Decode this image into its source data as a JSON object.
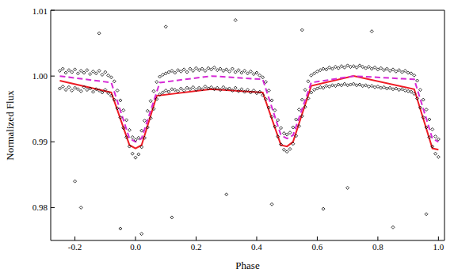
{
  "chart_data": {
    "type": "scatter",
    "x_label": "Phase",
    "y_label": "Normalized Flux",
    "xlim": [
      -0.28,
      1.02
    ],
    "xticks": [
      -0.2,
      {
        "value": 0,
        "label": "0.0"
      },
      0.2,
      0.4,
      0.6,
      0.8,
      {
        "value": 1,
        "label": "1.0"
      }
    ],
    "ylim": [
      0.975,
      1.01
    ],
    "yticks": [
      0.98,
      0.99,
      {
        "value": 1,
        "label": "1.00"
      },
      1.01
    ],
    "grid": false,
    "series": [
      {
        "type": "scatter",
        "color": "#000000",
        "marker": "diamond",
        "x": [
          -0.25,
          -0.25,
          -0.24,
          -0.24,
          -0.23,
          -0.23,
          -0.22,
          -0.22,
          -0.21,
          -0.21,
          -0.2,
          -0.2,
          -0.19,
          -0.19,
          -0.18,
          -0.18,
          -0.17,
          -0.17,
          -0.16,
          -0.16,
          -0.15,
          -0.15,
          -0.14,
          -0.14,
          -0.13,
          -0.13,
          -0.12,
          -0.12,
          -0.11,
          -0.11,
          -0.1,
          -0.1,
          -0.09,
          -0.09,
          -0.08,
          -0.08,
          -0.07,
          -0.07,
          -0.06,
          -0.06,
          -0.05,
          -0.05,
          -0.04,
          -0.04,
          -0.03,
          -0.03,
          -0.02,
          -0.02,
          -0.01,
          -0.01,
          0,
          0,
          0.01,
          0.01,
          0.02,
          0.02,
          0.03,
          0.03,
          0.04,
          0.04,
          0.05,
          0.05,
          0.06,
          0.06,
          0.07,
          0.07,
          0.08,
          0.08,
          0.09,
          0.09,
          0.1,
          0.1,
          0.11,
          0.11,
          0.12,
          0.12,
          0.13,
          0.13,
          0.14,
          0.14,
          0.15,
          0.15,
          0.16,
          0.16,
          0.17,
          0.17,
          0.18,
          0.18,
          0.19,
          0.19,
          0.2,
          0.2,
          0.21,
          0.21,
          0.22,
          0.22,
          0.23,
          0.23,
          0.24,
          0.24,
          0.25,
          0.25,
          0.26,
          0.26,
          0.27,
          0.27,
          0.28,
          0.28,
          0.29,
          0.29,
          0.3,
          0.3,
          0.31,
          0.31,
          0.32,
          0.32,
          0.33,
          0.33,
          0.34,
          0.34,
          0.35,
          0.35,
          0.36,
          0.36,
          0.37,
          0.37,
          0.38,
          0.38,
          0.39,
          0.39,
          0.4,
          0.4,
          0.41,
          0.41,
          0.42,
          0.42,
          0.43,
          0.43,
          0.44,
          0.44,
          0.45,
          0.45,
          0.46,
          0.46,
          0.47,
          0.47,
          0.48,
          0.48,
          0.49,
          0.49,
          0.5,
          0.5,
          0.51,
          0.51,
          0.52,
          0.52,
          0.53,
          0.53,
          0.54,
          0.54,
          0.55,
          0.55,
          0.56,
          0.56,
          0.57,
          0.57,
          0.58,
          0.58,
          0.59,
          0.59,
          0.6,
          0.6,
          0.61,
          0.61,
          0.62,
          0.62,
          0.63,
          0.63,
          0.64,
          0.64,
          0.65,
          0.65,
          0.66,
          0.66,
          0.67,
          0.67,
          0.68,
          0.68,
          0.69,
          0.69,
          0.7,
          0.7,
          0.71,
          0.71,
          0.72,
          0.72,
          0.73,
          0.73,
          0.74,
          0.74,
          0.75,
          0.75,
          0.76,
          0.76,
          0.77,
          0.77,
          0.78,
          0.78,
          0.79,
          0.79,
          0.8,
          0.8,
          0.81,
          0.81,
          0.82,
          0.82,
          0.83,
          0.83,
          0.84,
          0.84,
          0.85,
          0.85,
          0.86,
          0.86,
          0.87,
          0.87,
          0.88,
          0.88,
          0.89,
          0.89,
          0.9,
          0.9,
          0.91,
          0.91,
          0.92,
          0.92,
          0.93,
          0.93,
          0.94,
          0.94,
          0.95,
          0.95,
          0.96,
          0.96,
          0.97,
          0.97,
          0.98,
          0.98,
          0.99,
          0.99,
          1,
          1,
          -0.18,
          -0.05,
          0.02,
          0.12,
          0.3,
          0.45,
          0.62,
          0.85,
          0.96,
          0.1,
          0.55,
          -0.12,
          0.78,
          0.33,
          -0.2,
          0.7
        ],
        "values": [
          1.0008,
          0.9981,
          1.0011,
          0.9984,
          1.0005,
          0.9979,
          1.0009,
          0.9983,
          1.0006,
          0.9978,
          1.001,
          0.9982,
          1.0004,
          0.998,
          1.0008,
          0.9977,
          1.0005,
          0.9983,
          1.0009,
          0.9979,
          1.0003,
          0.9981,
          1.0007,
          0.9976,
          1.0004,
          0.998,
          1.0008,
          0.9978,
          1.0002,
          0.9975,
          1.0006,
          0.9979,
          1.0001,
          0.9974,
          0.9998,
          0.997,
          0.9992,
          0.9964,
          0.9978,
          0.9951,
          0.9963,
          0.9937,
          0.9948,
          0.9921,
          0.9933,
          0.9907,
          0.9918,
          0.9893,
          0.9907,
          0.9882,
          0.9903,
          0.9876,
          0.9906,
          0.9881,
          0.9917,
          0.9892,
          0.9932,
          0.9906,
          0.9947,
          0.9922,
          0.9962,
          0.9936,
          0.9977,
          0.995,
          0.9991,
          0.9965,
          0.9999,
          0.9972,
          1.0002,
          0.9975,
          1.0004,
          0.9978,
          1.0006,
          0.9976,
          1.0008,
          0.998,
          1.0005,
          0.9979,
          1.0009,
          0.9977,
          1.0007,
          0.9981,
          1.001,
          0.9978,
          1.0006,
          0.9982,
          1.0011,
          0.998,
          1.0008,
          0.9983,
          1.0012,
          0.9979,
          1.0009,
          0.9982,
          1.0011,
          0.998,
          1.0008,
          0.9984,
          1.0012,
          0.9981,
          1.001,
          0.9983,
          1.0013,
          0.998,
          1.0009,
          0.9982,
          1.0011,
          0.9979,
          1.0008,
          0.9983,
          1.001,
          0.998,
          1.0007,
          0.9981,
          1.0011,
          0.9978,
          1.0006,
          0.9982,
          1.0009,
          0.9977,
          1.0005,
          0.998,
          1.0008,
          0.9976,
          1.0004,
          0.9979,
          1.0007,
          0.9975,
          1.0003,
          0.9978,
          1.0005,
          0.9974,
          1.0001,
          0.9976,
          0.9998,
          0.9971,
          0.9991,
          0.9965,
          0.9978,
          0.9952,
          0.9963,
          0.9938,
          0.9948,
          0.9923,
          0.9933,
          0.9908,
          0.9921,
          0.9896,
          0.9913,
          0.9888,
          0.9911,
          0.9885,
          0.9914,
          0.9889,
          0.9922,
          0.9897,
          0.9934,
          0.9909,
          0.9949,
          0.9924,
          0.9964,
          0.9939,
          0.9979,
          0.9953,
          0.9992,
          0.9966,
          1.0001,
          0.9975,
          1.0004,
          0.9979,
          1.0007,
          0.9981,
          1.0009,
          0.9983,
          1.0011,
          0.9982,
          1.001,
          0.9985,
          1.0013,
          0.9984,
          1.0011,
          0.9986,
          1.0014,
          0.9985,
          1.0012,
          0.9987,
          1.0015,
          0.9986,
          1.0013,
          0.9988,
          1.0016,
          0.9986,
          1.0014,
          0.9987,
          1.0015,
          0.9988,
          1.0013,
          0.9986,
          1.0016,
          0.9987,
          1.0014,
          0.9985,
          1.0012,
          0.9986,
          1.0014,
          0.9984,
          1.0011,
          0.9985,
          1.0013,
          0.9983,
          1.001,
          0.9984,
          1.0012,
          0.9982,
          1.0009,
          0.9983,
          1.0011,
          0.9981,
          1.0008,
          0.9982,
          1.001,
          0.998,
          1.0007,
          0.9981,
          1.0009,
          0.9979,
          1.0006,
          0.998,
          1.0008,
          0.9978,
          1.0005,
          0.9977,
          1.0004,
          0.9976,
          1.0001,
          0.9973,
          0.9993,
          0.9966,
          0.9979,
          0.9952,
          0.9964,
          0.9937,
          0.9949,
          0.9922,
          0.9934,
          0.9907,
          0.9919,
          0.9893,
          0.9908,
          0.9882,
          0.9904,
          0.9877,
          0.98,
          0.9768,
          0.976,
          0.9785,
          0.982,
          0.9805,
          0.9798,
          0.977,
          0.979,
          1.0075,
          1.007,
          1.0065,
          1.0068,
          1.0085,
          0.984,
          0.983
        ]
      },
      {
        "type": "line",
        "color": "#ee1c25",
        "line_style": "solid",
        "x": [
          -0.25,
          -0.08,
          -0.02,
          0,
          0.02,
          0.07,
          0.25,
          0.42,
          0.48,
          0.5,
          0.52,
          0.58,
          0.72,
          0.92,
          0.98,
          1
        ],
        "values": [
          0.9993,
          0.9975,
          0.9895,
          0.989,
          0.9895,
          0.997,
          0.998,
          0.9975,
          0.9895,
          0.9893,
          0.99,
          0.9985,
          1,
          0.998,
          0.989,
          0.9888
        ]
      },
      {
        "type": "line",
        "color": "#d62bd6",
        "line_style": "dashed",
        "x": [
          -0.25,
          -0.08,
          -0.02,
          0,
          0.02,
          0.08,
          0.25,
          0.42,
          0.48,
          0.5,
          0.52,
          0.58,
          0.72,
          0.92,
          0.98,
          1
        ],
        "values": [
          1,
          0.999,
          0.9905,
          0.99,
          0.9905,
          0.999,
          1,
          0.9995,
          0.991,
          0.9905,
          0.991,
          0.999,
          1,
          0.9995,
          0.9905,
          0.99
        ]
      }
    ]
  }
}
